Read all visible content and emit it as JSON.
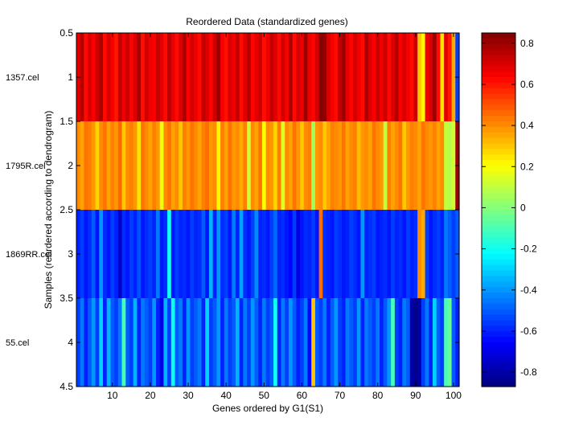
{
  "chart_data": {
    "type": "heatmap",
    "title": "Reordered Data (standardized genes)",
    "xlabel": "Genes ordered by G1(S1)",
    "ylabel": "Samples (reordered according to dendrogram)",
    "xlim": [
      0.5,
      101.5
    ],
    "ylim": [
      0.5,
      4.5
    ],
    "x_ticks": [
      10,
      20,
      30,
      40,
      50,
      60,
      70,
      80,
      90,
      100
    ],
    "y_ticks": [
      "0.5",
      "1",
      "1.5",
      "2",
      "2.5",
      "3",
      "3.5",
      "4",
      "4.5"
    ],
    "sample_labels": [
      "1357.cel",
      "1795R.cel",
      "1869RR.cel",
      "55.cel"
    ],
    "n_genes": 101,
    "colorbar": {
      "colormap": "jet",
      "clim": [
        -0.87,
        0.85
      ],
      "ticks": [
        "0.8",
        "0.6",
        "0.4",
        "0.2",
        "0",
        "-0.2",
        "-0.4",
        "-0.6",
        "-0.8"
      ]
    },
    "rows": [
      {
        "name": "1357.cel",
        "values": [
          0.68,
          0.76,
          0.62,
          0.7,
          0.64,
          0.72,
          0.78,
          0.62,
          0.7,
          0.65,
          0.6,
          0.74,
          0.66,
          0.72,
          0.63,
          0.69,
          0.78,
          0.61,
          0.71,
          0.66,
          0.64,
          0.73,
          0.68,
          0.62,
          0.75,
          0.67,
          0.62,
          0.7,
          0.78,
          0.64,
          0.71,
          0.66,
          0.62,
          0.74,
          0.69,
          0.63,
          0.72,
          0.8,
          0.65,
          0.61,
          0.7,
          0.66,
          0.74,
          0.62,
          0.69,
          0.76,
          0.63,
          0.68,
          0.72,
          0.61,
          0.66,
          0.74,
          0.69,
          0.62,
          0.71,
          0.65,
          0.78,
          0.62,
          0.7,
          0.67,
          0.8,
          0.66,
          0.63,
          0.7,
          0.84,
          0.82,
          0.7,
          0.65,
          0.62,
          0.74,
          0.8,
          0.68,
          0.63,
          0.71,
          0.66,
          0.62,
          0.78,
          0.69,
          0.64,
          0.73,
          0.66,
          0.72,
          0.62,
          0.69,
          0.76,
          0.64,
          0.7,
          0.65,
          0.62,
          0.72,
          0.3,
          0.22,
          0.66,
          0.7,
          0.8,
          0.62,
          0.25,
          0.68,
          0.6,
          0.35,
          -0.55
        ]
      },
      {
        "name": "1795R.cel",
        "values": [
          0.4,
          0.36,
          0.44,
          0.42,
          0.38,
          0.28,
          0.4,
          0.44,
          0.36,
          0.42,
          0.38,
          0.46,
          0.3,
          0.4,
          0.42,
          0.38,
          0.25,
          0.44,
          0.4,
          0.36,
          0.42,
          0.38,
          0.18,
          0.4,
          0.44,
          0.36,
          0.4,
          0.3,
          0.42,
          0.38,
          0.44,
          0.4,
          0.36,
          0.42,
          0.45,
          0.38,
          0.4,
          0.22,
          0.42,
          0.36,
          0.44,
          0.38,
          0.4,
          0.35,
          0.42,
          0.12,
          0.4,
          0.36,
          0.44,
          0.2,
          0.4,
          0.38,
          0.28,
          0.42,
          0.15,
          0.4,
          0.36,
          0.44,
          0.38,
          0.3,
          0.4,
          0.42,
          0.05,
          0.38,
          0.4,
          0.3,
          0.36,
          0.42,
          0.4,
          0.38,
          0.44,
          0.36,
          0.4,
          0.42,
          0.32,
          0.38,
          0.4,
          0.36,
          0.44,
          0.4,
          0.38,
          0.1,
          0.42,
          0.36,
          0.4,
          0.44,
          0.3,
          0.38,
          0.42,
          0.4,
          0.36,
          0.44,
          0.4,
          0.38,
          0.42,
          0.36,
          0.4,
          0.1,
          0.08,
          0.12,
          0.8
        ]
      },
      {
        "name": "1869RR.cel",
        "values": [
          -0.6,
          -0.55,
          -0.62,
          -0.58,
          -0.5,
          -0.62,
          -0.4,
          -0.58,
          -0.62,
          -0.55,
          -0.6,
          -0.75,
          -0.58,
          -0.62,
          -0.55,
          -0.6,
          -0.52,
          -0.62,
          -0.58,
          -0.55,
          -0.6,
          -0.45,
          -0.62,
          -0.58,
          -0.2,
          -0.62,
          -0.55,
          -0.6,
          -0.58,
          -0.62,
          -0.55,
          -0.6,
          -0.58,
          -0.5,
          -0.62,
          -0.35,
          -0.6,
          -0.4,
          -0.58,
          -0.55,
          -0.62,
          -0.45,
          -0.6,
          -0.38,
          -0.58,
          -0.62,
          -0.55,
          -0.42,
          -0.6,
          -0.58,
          -0.62,
          -0.55,
          -0.48,
          -0.6,
          -0.58,
          -0.62,
          -0.65,
          -0.55,
          -0.7,
          -0.62,
          -0.58,
          -0.6,
          -0.55,
          -0.62,
          0.45,
          -0.58,
          -0.6,
          -0.62,
          -0.55,
          -0.58,
          -0.62,
          -0.6,
          -0.55,
          -0.58,
          -0.62,
          -0.4,
          -0.6,
          -0.58,
          -0.55,
          -0.62,
          -0.6,
          -0.58,
          -0.62,
          -0.55,
          -0.6,
          -0.58,
          -0.62,
          -0.55,
          -0.6,
          -0.58,
          0.4,
          0.35,
          -0.55,
          -0.62,
          -0.58,
          -0.55,
          -0.6,
          -0.45,
          -0.5,
          -0.55,
          -0.5
        ]
      },
      {
        "name": "55.cel",
        "values": [
          -0.55,
          -0.45,
          -0.6,
          -0.5,
          -0.4,
          -0.55,
          -0.3,
          -0.6,
          -0.35,
          -0.5,
          -0.55,
          -0.45,
          -0.1,
          -0.5,
          -0.55,
          -0.35,
          -0.6,
          -0.45,
          -0.5,
          -0.55,
          -0.4,
          -0.6,
          -0.7,
          -0.35,
          -0.55,
          -0.2,
          -0.5,
          -0.45,
          -0.6,
          -0.4,
          -0.55,
          -0.5,
          -0.45,
          -0.6,
          -0.3,
          -0.55,
          -0.5,
          -0.4,
          -0.6,
          -0.45,
          -0.55,
          -0.5,
          -0.35,
          -0.6,
          -0.45,
          -0.55,
          -0.4,
          -0.5,
          -0.6,
          -0.45,
          -0.55,
          -0.5,
          -0.2,
          -0.6,
          -0.45,
          -0.55,
          -0.4,
          -0.5,
          -0.6,
          -0.55,
          -0.45,
          -0.65,
          0.3,
          -0.5,
          -0.55,
          -0.45,
          -0.6,
          -0.5,
          -0.4,
          -0.55,
          -0.6,
          -0.45,
          -0.5,
          -0.55,
          -0.4,
          -0.6,
          -0.45,
          -0.5,
          -0.55,
          -0.45,
          -0.6,
          -0.5,
          -0.4,
          -0.1,
          -0.55,
          -0.6,
          -0.45,
          -0.5,
          -0.8,
          -0.85,
          -0.8,
          -0.55,
          -0.45,
          -0.6,
          -0.3,
          -0.5,
          -0.55,
          -0.1,
          -0.05,
          -0.5,
          -0.6
        ]
      }
    ]
  }
}
